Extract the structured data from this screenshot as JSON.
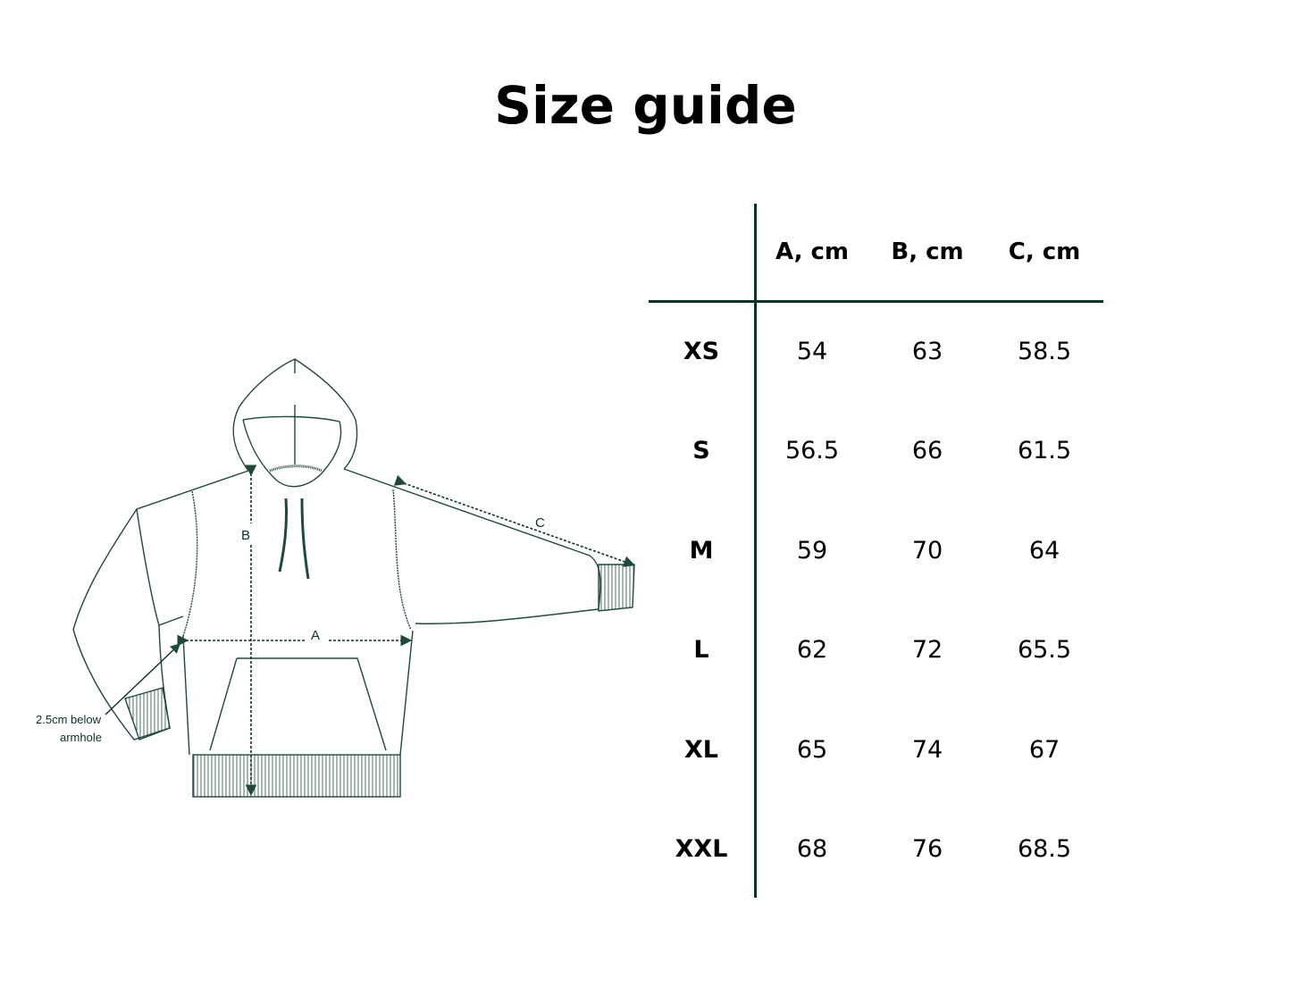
{
  "title": "Size guide",
  "colors": {
    "line": "#0b3323",
    "drawing": "#1f4a38"
  },
  "table": {
    "headers": [
      "A, cm",
      "B, cm",
      "C, cm"
    ],
    "rows": [
      {
        "size": "XS",
        "values": [
          "54",
          "63",
          "58.5"
        ]
      },
      {
        "size": "S",
        "values": [
          "56.5",
          "66",
          "61.5"
        ]
      },
      {
        "size": "M",
        "values": [
          "59",
          "70",
          "64"
        ]
      },
      {
        "size": "L",
        "values": [
          "62",
          "72",
          "65.5"
        ]
      },
      {
        "size": "XL",
        "values": [
          "65",
          "74",
          "67"
        ]
      },
      {
        "size": "XXL",
        "values": [
          "68",
          "76",
          "68.5"
        ]
      }
    ]
  },
  "diagram": {
    "label_a": "A",
    "label_b": "B",
    "label_c": "C",
    "note_line1": "2.5cm below",
    "note_line2": "armhole"
  }
}
